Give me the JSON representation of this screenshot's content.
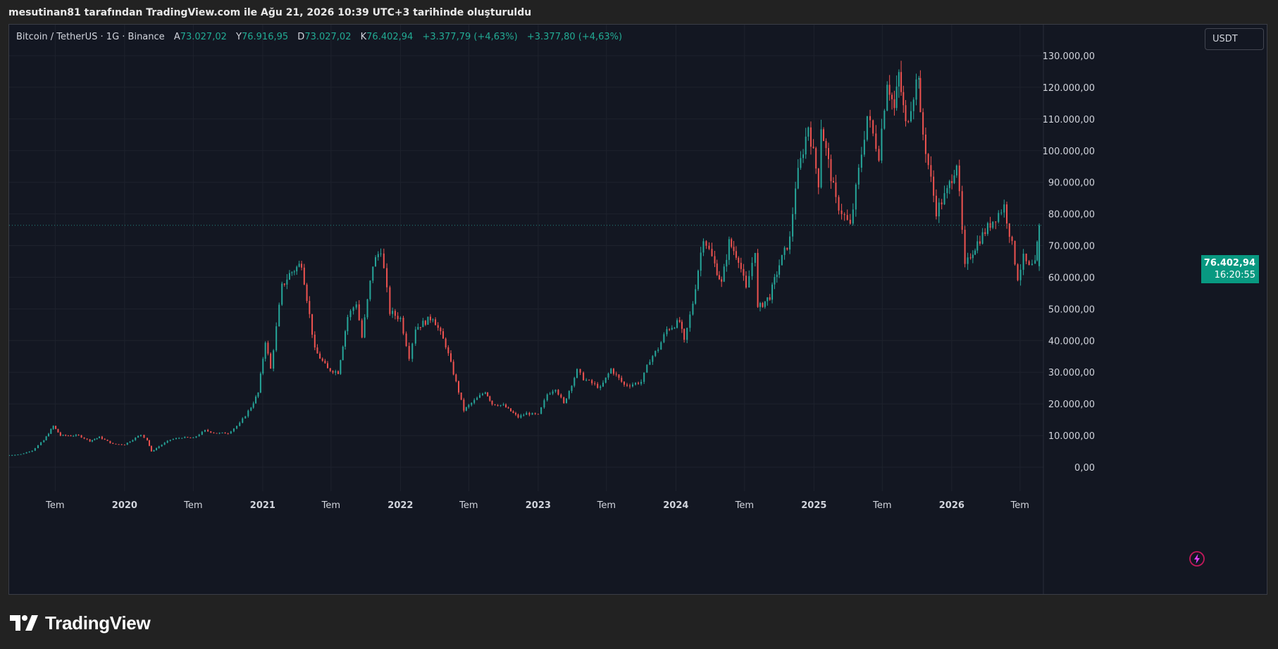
{
  "header": {
    "caption": "mesutinan81 tarafından TradingView.com ile Ağu 21, 2026 10:39 UTC+3 tarihinde oluşturuldu"
  },
  "legend": {
    "symbol": "Bitcoin / TetherUS · 1G · Binance",
    "open_label": "A",
    "open_value": "73.027,02",
    "high_label": "Y",
    "high_value": "76.916,95",
    "low_label": "D",
    "low_value": "73.027,02",
    "close_label": "K",
    "close_value": "76.402,94",
    "change_1": "+3.377,79 (+4,63%)",
    "change_2": "+3.377,80 (+4,63%)"
  },
  "currency_button": "USDT",
  "last_price": {
    "value": "76.402,94",
    "countdown": "16:20:55"
  },
  "footer": {
    "brand": "TradingView"
  },
  "colors": {
    "background": "#131722",
    "up": "#26a69a",
    "down": "#ef5350",
    "price_tag": "#089981",
    "grid": "#1e222d",
    "axis_text": "#d1d4dc"
  },
  "icons": {
    "flash": "lightning-bolt-icon",
    "logo": "tradingview-logo-icon"
  },
  "chart_data": {
    "type": "line",
    "title": "",
    "series": [
      {
        "name": "Bitcoin / TetherUS",
        "x": [
          "2019-03-01",
          "2019-04-01",
          "2019-05-01",
          "2019-06-01",
          "2019-06-26",
          "2019-07-15",
          "2019-09-01",
          "2019-10-01",
          "2019-10-26",
          "2019-12-01",
          "2020-01-01",
          "2020-02-13",
          "2020-03-01",
          "2020-03-12",
          "2020-04-01",
          "2020-05-01",
          "2020-06-01",
          "2020-07-01",
          "2020-08-01",
          "2020-09-01",
          "2020-10-01",
          "2020-11-01",
          "2020-12-01",
          "2020-12-20",
          "2021-01-08",
          "2021-01-22",
          "2021-02-21",
          "2021-03-13",
          "2021-04-14",
          "2021-05-19",
          "2021-06-22",
          "2021-07-20",
          "2021-08-14",
          "2021-09-06",
          "2021-09-21",
          "2021-10-20",
          "2021-11-10",
          "2021-12-04",
          "2022-01-01",
          "2022-01-24",
          "2022-02-10",
          "2022-03-28",
          "2022-05-01",
          "2022-06-18",
          "2022-07-01",
          "2022-08-14",
          "2022-09-01",
          "2022-10-01",
          "2022-11-09",
          "2022-12-01",
          "2023-01-01",
          "2023-01-25",
          "2023-02-16",
          "2023-03-10",
          "2023-04-14",
          "2023-05-01",
          "2023-06-15",
          "2023-07-13",
          "2023-08-17",
          "2023-09-01",
          "2023-10-01",
          "2023-10-24",
          "2023-11-15",
          "2023-12-08",
          "2024-01-11",
          "2024-01-23",
          "2024-02-15",
          "2024-03-14",
          "2024-04-13",
          "2024-05-01",
          "2024-05-21",
          "2024-06-15",
          "2024-07-05",
          "2024-07-29",
          "2024-08-05",
          "2024-09-06",
          "2024-10-01",
          "2024-10-29",
          "2024-11-13",
          "2024-12-17",
          "2025-01-13",
          "2025-01-20",
          "2025-02-28",
          "2025-04-07",
          "2025-05-22",
          "2025-06-22",
          "2025-07-14",
          "2025-08-02",
          "2025-08-14",
          "2025-09-01",
          "2025-10-06",
          "2025-10-10",
          "2025-11-21",
          "2025-12-20",
          "2026-01-14",
          "2026-02-05",
          "2026-02-20",
          "2026-03-10",
          "2026-04-20",
          "2026-05-20",
          "2026-06-10",
          "2026-06-25",
          "2026-07-10",
          "2026-07-25",
          "2026-08-10",
          "2026-08-21"
        ],
        "y": [
          3800,
          4100,
          5300,
          8500,
          13000,
          10000,
          10000,
          8300,
          9500,
          7300,
          7200,
          10300,
          8600,
          4900,
          6600,
          8700,
          9400,
          9200,
          11600,
          10700,
          10800,
          13800,
          19000,
          23500,
          40000,
          31000,
          57000,
          61000,
          64500,
          37000,
          31000,
          30000,
          47500,
          52000,
          41000,
          64000,
          69000,
          49000,
          47000,
          35000,
          44000,
          47500,
          38500,
          18000,
          19500,
          24000,
          20000,
          19500,
          15800,
          17000,
          16500,
          23000,
          25000,
          20000,
          30500,
          28000,
          25000,
          31000,
          26000,
          26000,
          27000,
          34000,
          37500,
          43500,
          46000,
          39500,
          52000,
          73000,
          64000,
          58000,
          71000,
          66000,
          56000,
          69000,
          50000,
          54000,
          64000,
          72000,
          89000,
          108000,
          90000,
          108000,
          84000,
          76000,
          111000,
          99000,
          122500,
          113000,
          124000,
          108000,
          125000,
          110000,
          81000,
          87000,
          96500,
          63000,
          67000,
          71000,
          78000,
          82500,
          70000,
          60000,
          66000,
          63000,
          64000,
          76400
        ]
      }
    ],
    "ylim": [
      -10000,
      135000
    ],
    "y_ticks": [
      "0,00",
      "10.000,00",
      "20.000,00",
      "30.000,00",
      "40.000,00",
      "50.000,00",
      "60.000,00",
      "70.000,00",
      "80.000,00",
      "90.000,00",
      "100.000,00",
      "110.000,00",
      "120.000,00",
      "130.000,00"
    ],
    "y_tick_values": [
      0,
      10000,
      20000,
      30000,
      40000,
      50000,
      60000,
      70000,
      80000,
      90000,
      100000,
      110000,
      120000,
      130000
    ],
    "x_ticks": [
      "Tem",
      "2020",
      "Tem",
      "2021",
      "Tem",
      "2022",
      "Tem",
      "2023",
      "Tem",
      "2024",
      "Tem",
      "2025",
      "Tem",
      "2026",
      "Tem"
    ],
    "x_tick_dates": [
      "2019-07-01",
      "2020-01-01",
      "2020-07-01",
      "2021-01-01",
      "2021-07-01",
      "2022-01-01",
      "2022-07-01",
      "2023-01-01",
      "2023-07-01",
      "2024-01-01",
      "2024-07-01",
      "2025-01-01",
      "2025-07-01",
      "2026-01-01",
      "2026-07-01"
    ],
    "x_range": [
      "2019-03-01",
      "2026-09-01"
    ],
    "grid": true,
    "last_price_line": 76402.94
  }
}
